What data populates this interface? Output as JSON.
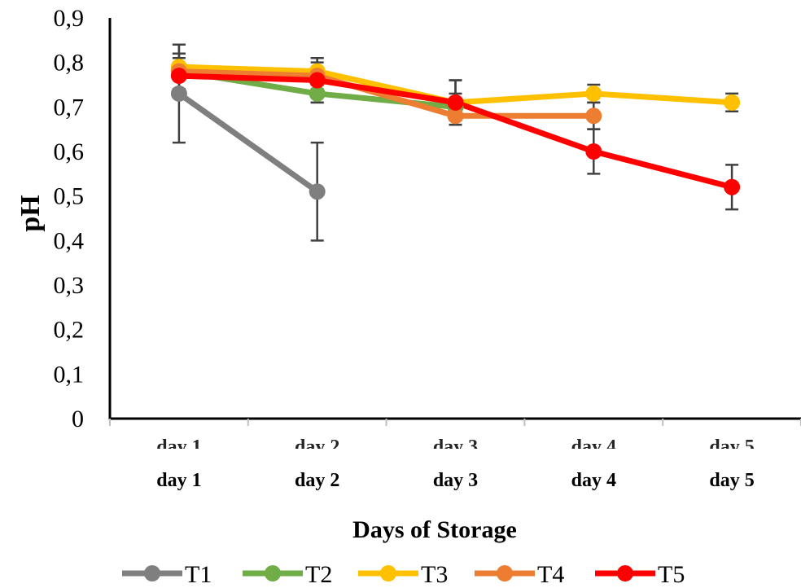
{
  "chart_data": {
    "type": "line",
    "xlabel": "Days of Storage",
    "ylabel": "pH",
    "categories": [
      "day 1",
      "day 2",
      "day 3",
      "day 4",
      "day 5"
    ],
    "ylim": [
      0,
      0.9
    ],
    "yticks": [
      "0",
      "0,1",
      "0,2",
      "0,3",
      "0,4",
      "0,5",
      "0,6",
      "0,7",
      "0,8",
      "0,9"
    ],
    "grid": false,
    "legend_position": "bottom",
    "series": [
      {
        "name": "T1",
        "color": "#7f7f7f",
        "values": [
          0.73,
          0.51,
          null,
          null,
          null
        ],
        "errors": [
          0.11,
          0.11,
          null,
          null,
          null
        ]
      },
      {
        "name": "T2",
        "color": "#70ad47",
        "values": [
          0.78,
          0.73,
          0.7,
          null,
          null
        ],
        "errors": [
          0.04,
          0.02,
          0.03,
          null,
          null
        ]
      },
      {
        "name": "T3",
        "color": "#ffc000",
        "values": [
          0.79,
          0.78,
          0.71,
          0.73,
          0.71
        ],
        "errors": [
          0.05,
          0.03,
          0.05,
          0.02,
          0.02
        ]
      },
      {
        "name": "T4",
        "color": "#ed7d31",
        "values": [
          0.78,
          0.77,
          0.68,
          0.68,
          null
        ],
        "errors": [
          0.04,
          0.03,
          0.02,
          0.03,
          null
        ]
      },
      {
        "name": "T5",
        "color": "#ff0000",
        "values": [
          0.77,
          0.76,
          0.71,
          0.6,
          0.52
        ],
        "errors": [
          0.04,
          0.05,
          0.05,
          0.05,
          0.05
        ]
      }
    ]
  }
}
